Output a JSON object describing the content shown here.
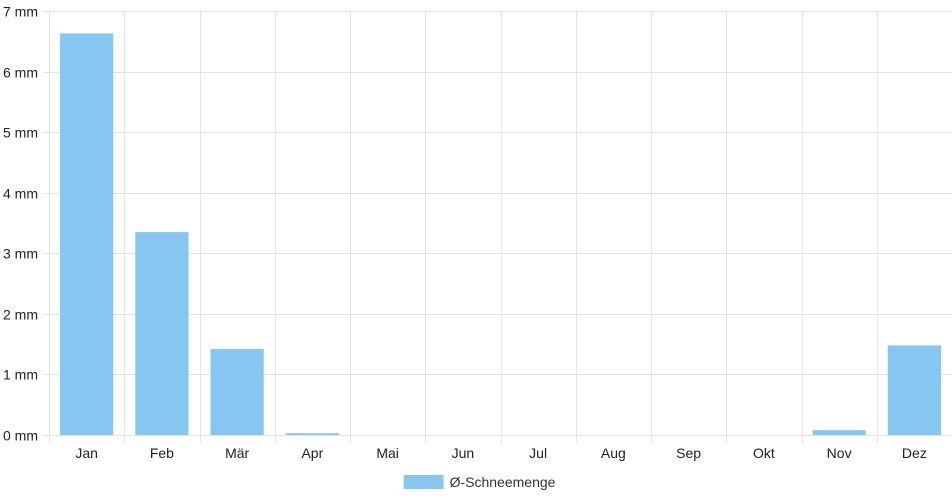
{
  "chart_data": {
    "type": "bar",
    "categories": [
      "Jan",
      "Feb",
      "Mär",
      "Apr",
      "Mai",
      "Jun",
      "Jul",
      "Aug",
      "Sep",
      "Okt",
      "Nov",
      "Dez"
    ],
    "series": [
      {
        "name": "Ø-Schneemenge",
        "values": [
          6.63,
          3.35,
          1.42,
          0.03,
          0,
          0,
          0,
          0,
          0,
          0,
          0.08,
          1.48
        ],
        "color": "#88c6f2"
      }
    ],
    "y_unit": "mm",
    "y_tick_labels": [
      "0 mm",
      "1 mm",
      "2 mm",
      "3 mm",
      "4 mm",
      "5 mm",
      "6 mm",
      "7 mm"
    ],
    "ylim": [
      0,
      7
    ],
    "grid": true,
    "legend_position": "bottom"
  }
}
